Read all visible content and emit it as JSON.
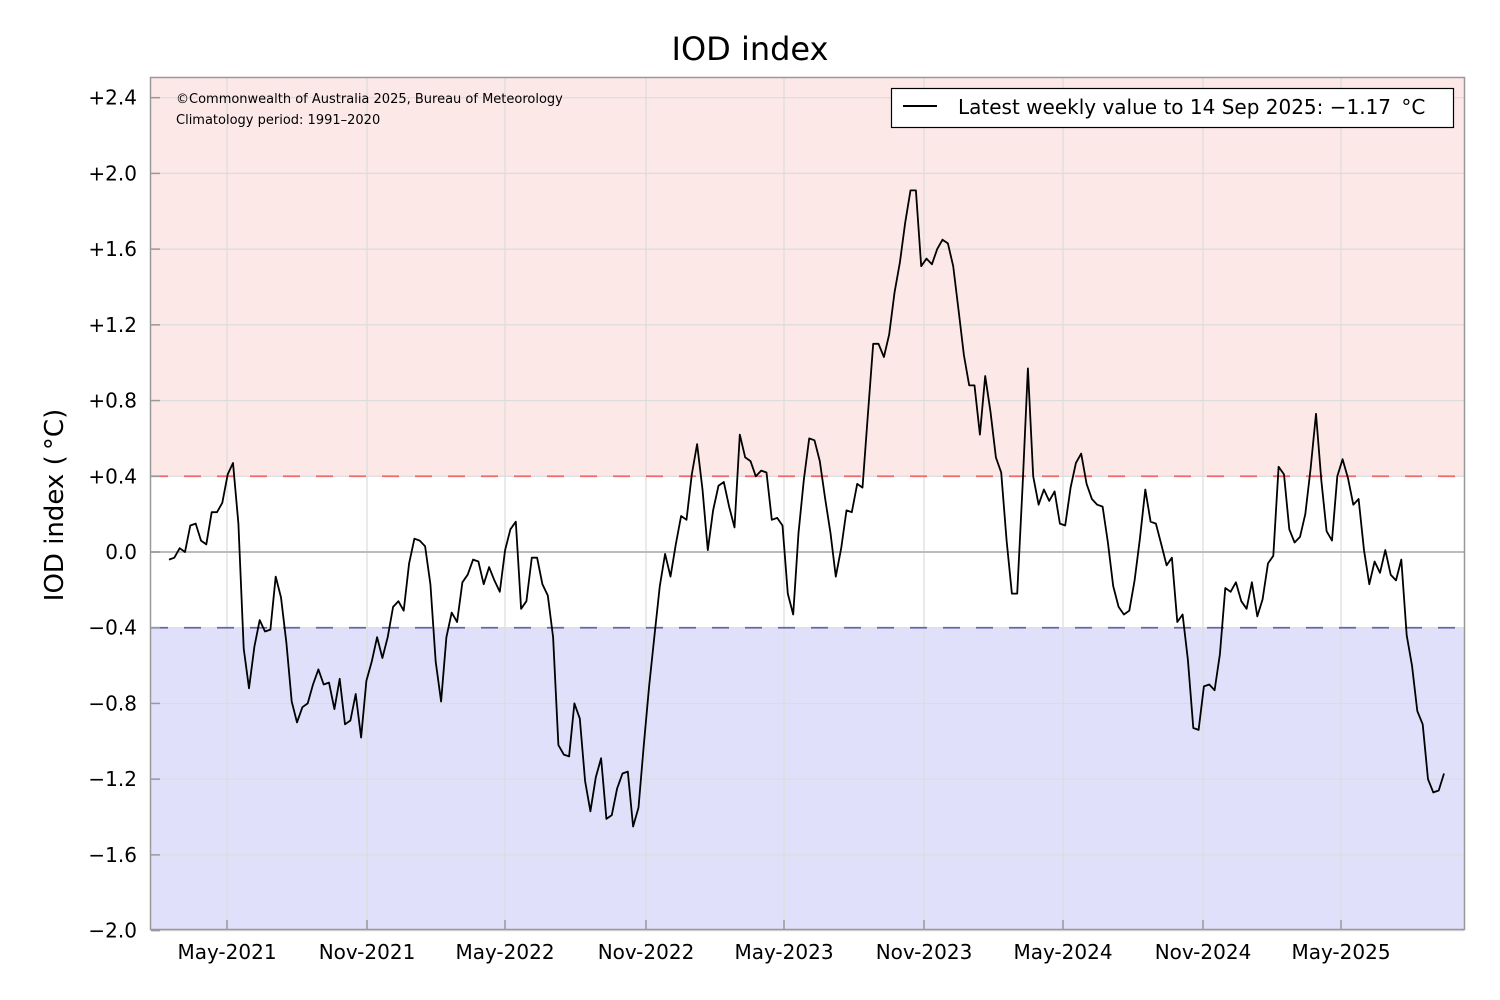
{
  "chart_data": {
    "type": "line",
    "title": "IOD index",
    "xlabel": "",
    "ylabel": "IOD index ( °C)",
    "ylim": [
      -2.0,
      2.5
    ],
    "yticks": [
      "+2.4",
      "+2.0",
      "+1.6",
      "+1.2",
      "+0.8",
      "+0.4",
      "0.0",
      "−0.4",
      "−0.8",
      "−1.2",
      "−1.6",
      "−2.0"
    ],
    "ytick_values": [
      2.4,
      2.0,
      1.6,
      1.2,
      0.8,
      0.4,
      0.0,
      -0.4,
      -0.8,
      -1.2,
      -1.6,
      -2.0
    ],
    "xticks": [
      "May-2021",
      "Nov-2021",
      "May-2022",
      "Nov-2022",
      "May-2023",
      "Nov-2023",
      "May-2024",
      "Nov-2024",
      "May-2025"
    ],
    "grid": true,
    "thresholds": {
      "positive": 0.4,
      "negative": -0.4
    },
    "colors": {
      "positive_fill": "#fde8e8",
      "negative_fill": "#e0e0fb",
      "positive_line": "#ee6a6a",
      "negative_line": "#6666aa",
      "series": "#000000",
      "grid": "#dcdcdc"
    },
    "legend": {
      "position": "upper right",
      "label": "Latest weekly value to 14 Sep 2025: −1.17  °C"
    },
    "annotations": [
      "©Commonwealth of Australia 2025, Bureau of Meteorology",
      "Climatology period: 1991–2020"
    ],
    "series": [
      {
        "name": "Weekly IOD index",
        "x_start": "2021-03-14",
        "x_step_days": 7,
        "values": [
          -0.04,
          -0.03,
          0.02,
          0.0,
          0.14,
          0.15,
          0.06,
          0.04,
          0.21,
          0.21,
          0.26,
          0.41,
          0.47,
          0.15,
          -0.51,
          -0.72,
          -0.5,
          -0.36,
          -0.42,
          -0.41,
          -0.13,
          -0.24,
          -0.48,
          -0.79,
          -0.9,
          -0.82,
          -0.8,
          -0.7,
          -0.62,
          -0.7,
          -0.69,
          -0.83,
          -0.67,
          -0.91,
          -0.89,
          -0.75,
          -0.98,
          -0.68,
          -0.58,
          -0.45,
          -0.56,
          -0.45,
          -0.29,
          -0.26,
          -0.31,
          -0.06,
          0.07,
          0.06,
          0.03,
          -0.17,
          -0.58,
          -0.79,
          -0.45,
          -0.32,
          -0.37,
          -0.16,
          -0.12,
          -0.04,
          -0.05,
          -0.17,
          -0.08,
          -0.15,
          -0.21,
          0.01,
          0.12,
          0.16,
          -0.3,
          -0.26,
          -0.03,
          -0.03,
          -0.17,
          -0.23,
          -0.45,
          -1.02,
          -1.07,
          -1.08,
          -0.8,
          -0.88,
          -1.21,
          -1.37,
          -1.19,
          -1.09,
          -1.41,
          -1.39,
          -1.25,
          -1.17,
          -1.16,
          -1.45,
          -1.35,
          -1.02,
          -0.71,
          -0.44,
          -0.18,
          -0.01,
          -0.13,
          0.04,
          0.19,
          0.17,
          0.41,
          0.57,
          0.33,
          0.01,
          0.22,
          0.35,
          0.37,
          0.24,
          0.13,
          0.62,
          0.5,
          0.48,
          0.4,
          0.43,
          0.42,
          0.17,
          0.18,
          0.14,
          -0.22,
          -0.33,
          0.1,
          0.38,
          0.6,
          0.59,
          0.48,
          0.28,
          0.1,
          -0.13,
          0.02,
          0.22,
          0.21,
          0.36,
          0.34,
          0.72,
          1.1,
          1.1,
          1.03,
          1.15,
          1.37,
          1.53,
          1.74,
          1.91,
          1.91,
          1.51,
          1.55,
          1.52,
          1.6,
          1.65,
          1.63,
          1.51,
          1.28,
          1.04,
          0.88,
          0.88,
          0.62,
          0.93,
          0.74,
          0.5,
          0.42,
          0.06,
          -0.22,
          -0.22,
          0.35,
          0.97,
          0.4,
          0.25,
          0.33,
          0.27,
          0.32,
          0.15,
          0.14,
          0.34,
          0.47,
          0.52,
          0.36,
          0.28,
          0.25,
          0.24,
          0.05,
          -0.18,
          -0.29,
          -0.33,
          -0.31,
          -0.15,
          0.07,
          0.33,
          0.16,
          0.15,
          0.04,
          -0.07,
          -0.03,
          -0.37,
          -0.33,
          -0.57,
          -0.93,
          -0.94,
          -0.71,
          -0.7,
          -0.73,
          -0.54,
          -0.19,
          -0.21,
          -0.16,
          -0.26,
          -0.3,
          -0.16,
          -0.34,
          -0.25,
          -0.06,
          -0.02,
          0.45,
          0.41,
          0.12,
          0.05,
          0.08,
          0.2,
          0.44,
          0.73,
          0.38,
          0.11,
          0.06,
          0.4,
          0.49,
          0.39,
          0.25,
          0.28,
          0.01,
          -0.17,
          -0.05,
          -0.11,
          0.01,
          -0.12,
          -0.15,
          -0.04,
          -0.44,
          -0.6,
          -0.84,
          -0.91,
          -1.2,
          -1.27,
          -1.26,
          -1.17
        ]
      }
    ]
  },
  "legend": {
    "label": "Latest weekly value to 14 Sep 2025: −1.17  °C"
  },
  "annotations": {
    "copyright": "©Commonwealth of Australia 2025, Bureau of Meteorology",
    "climatology": "Climatology period: 1991–2020"
  }
}
